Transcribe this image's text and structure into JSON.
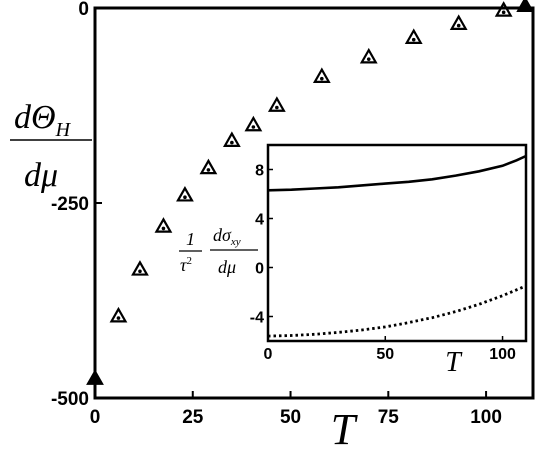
{
  "chart_data": [
    {
      "type": "scatter",
      "marker": "triangle",
      "xlabel": "T",
      "ylabel": {
        "numerator": "dΘ",
        "subscript": "H",
        "denominator": "dμ"
      },
      "xlim": [
        0,
        112
      ],
      "ylim": [
        -500,
        0
      ],
      "xticks": [
        "0",
        "25",
        "50",
        "75",
        "100"
      ],
      "yticks": [
        "0",
        "-250",
        "-500"
      ],
      "x": [
        0,
        6,
        11.5,
        17.5,
        23,
        29,
        35,
        40.5,
        46.5,
        58,
        70,
        81.5,
        93,
        104.5,
        110
      ],
      "y": [
        -475,
        -395,
        -335,
        -280,
        -240,
        -205,
        -170,
        -150,
        -125,
        -88,
        -63,
        -38,
        -20,
        -3,
        3
      ]
    },
    {
      "type": "line",
      "inset": true,
      "xlabel": "T",
      "ylabel": {
        "prefix_numerator": "1",
        "prefix_denominator": "τ",
        "prefix_power": "2",
        "numerator": "dσ",
        "subscript": "xy",
        "denominator": "dμ"
      },
      "xlim": [
        0,
        110
      ],
      "ylim": [
        -6,
        10
      ],
      "xticks": [
        "0",
        "50",
        "100"
      ],
      "yticks": [
        "8",
        "4",
        "0",
        "-4"
      ],
      "series": [
        {
          "style": "solid",
          "x": [
            0,
            10,
            20,
            30,
            40,
            50,
            60,
            70,
            80,
            90,
            100,
            106,
            110
          ],
          "y": [
            6.3,
            6.35,
            6.45,
            6.55,
            6.7,
            6.85,
            7.0,
            7.2,
            7.5,
            7.85,
            8.3,
            8.75,
            9.1
          ]
        },
        {
          "style": "dotted",
          "x": [
            0,
            10,
            20,
            30,
            40,
            50,
            60,
            70,
            80,
            90,
            100,
            110
          ],
          "y": [
            -5.6,
            -5.55,
            -5.45,
            -5.3,
            -5.1,
            -4.85,
            -4.5,
            -4.1,
            -3.6,
            -3.0,
            -2.3,
            -1.5
          ]
        }
      ]
    }
  ]
}
